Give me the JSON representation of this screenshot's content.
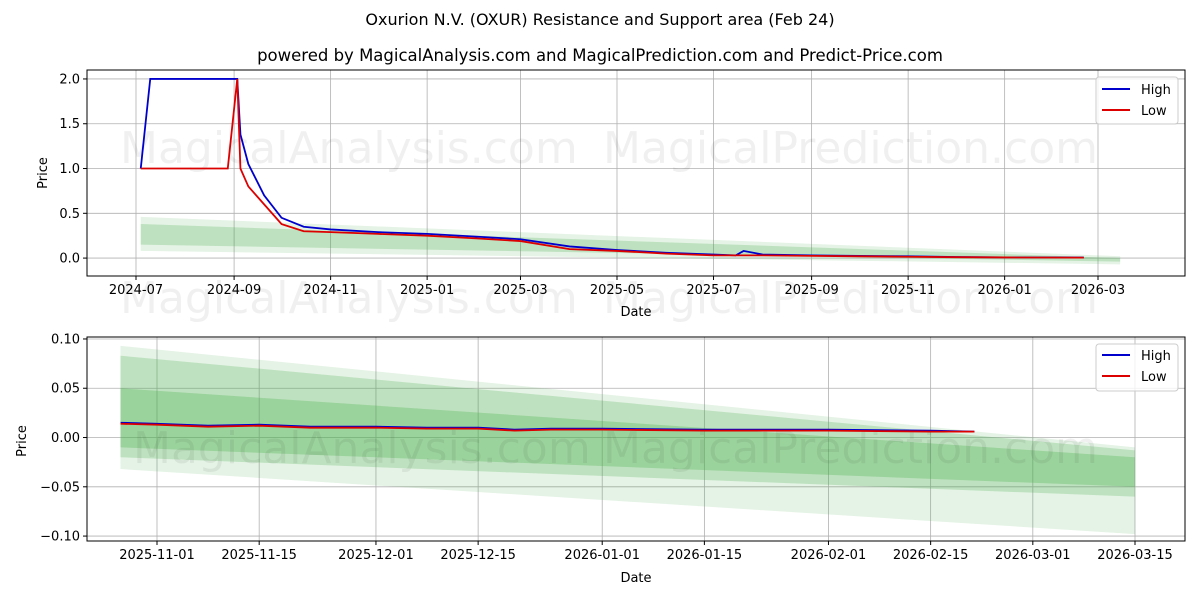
{
  "header": {
    "title": "Oxurion N.V. (OXUR) Resistance and Support area (Feb 24)",
    "subtitle": "powered by MagicalAnalysis.com and MagicalPrediction.com and Predict-Price.com"
  },
  "watermarks": [
    "MagicalAnalysis.com",
    "MagicalPrediction.com"
  ],
  "colors": {
    "high": "#0000cc",
    "low": "#dd0000",
    "band": "#4caf50"
  },
  "chart_data": [
    {
      "type": "line",
      "title": "",
      "xlabel": "Date",
      "ylabel": "Price",
      "x_ticks": [
        "2024-07",
        "2024-09",
        "2024-11",
        "2025-01",
        "2025-03",
        "2025-05",
        "2025-07",
        "2025-09",
        "2025-11",
        "2026-01",
        "2026-03"
      ],
      "y_ticks": [
        "0.0",
        "0.5",
        "1.0",
        "1.5",
        "2.0"
      ],
      "ylim": [
        -0.2,
        2.1
      ],
      "grid": true,
      "legend": {
        "position": "upper right",
        "entries": [
          "High",
          "Low"
        ]
      },
      "series": [
        {
          "name": "High",
          "color": "#0000cc",
          "x": [
            "2024-07-04",
            "2024-07-10",
            "2024-07-24",
            "2024-08-10",
            "2024-08-28",
            "2024-09-03",
            "2024-09-05",
            "2024-09-10",
            "2024-09-20",
            "2024-10-01",
            "2024-10-15",
            "2024-11-01",
            "2024-12-01",
            "2025-01-01",
            "2025-02-01",
            "2025-03-01",
            "2025-04-01",
            "2025-05-01",
            "2025-06-01",
            "2025-07-01",
            "2025-07-15",
            "2025-07-20",
            "2025-08-01",
            "2025-09-01",
            "2025-10-01",
            "2025-11-01",
            "2025-12-01",
            "2026-01-01",
            "2026-02-20"
          ],
          "values": [
            1.0,
            2.0,
            2.0,
            2.0,
            2.0,
            2.0,
            1.38,
            1.05,
            0.7,
            0.45,
            0.35,
            0.32,
            0.29,
            0.27,
            0.24,
            0.21,
            0.13,
            0.09,
            0.06,
            0.04,
            0.03,
            0.08,
            0.04,
            0.03,
            0.025,
            0.02,
            0.012,
            0.008,
            0.006
          ]
        },
        {
          "name": "Low",
          "color": "#dd0000",
          "x": [
            "2024-07-04",
            "2024-08-28",
            "2024-09-03",
            "2024-09-05",
            "2024-09-10",
            "2024-09-20",
            "2024-10-01",
            "2024-10-15",
            "2024-11-01",
            "2024-12-01",
            "2025-01-01",
            "2025-02-01",
            "2025-03-01",
            "2025-04-01",
            "2025-05-01",
            "2025-06-01",
            "2025-07-01",
            "2025-08-01",
            "2025-09-01",
            "2025-10-01",
            "2025-11-01",
            "2025-12-01",
            "2026-01-01",
            "2026-02-20"
          ],
          "values": [
            1.0,
            1.0,
            2.0,
            1.0,
            0.8,
            0.6,
            0.38,
            0.3,
            0.29,
            0.27,
            0.25,
            0.22,
            0.19,
            0.1,
            0.08,
            0.05,
            0.03,
            0.03,
            0.025,
            0.02,
            0.015,
            0.01,
            0.007,
            0.005
          ]
        }
      ],
      "bands": [
        {
          "name": "outer",
          "x": [
            "2024-07-04",
            "2026-03-15"
          ],
          "upper": [
            0.46,
            0.02
          ],
          "lower": [
            0.08,
            -0.07
          ]
        },
        {
          "name": "inner",
          "x": [
            "2024-07-04",
            "2026-03-15"
          ],
          "upper": [
            0.38,
            0.0
          ],
          "lower": [
            0.15,
            -0.04
          ]
        }
      ]
    },
    {
      "type": "line",
      "title": "",
      "xlabel": "Date",
      "ylabel": "Price",
      "x_ticks": [
        "2025-11-01",
        "2025-11-15",
        "2025-12-01",
        "2025-12-15",
        "2026-01-01",
        "2026-01-15",
        "2026-02-01",
        "2026-02-15",
        "2026-03-01",
        "2026-03-15"
      ],
      "y_ticks": [
        "−0.10",
        "−0.05",
        "0.00",
        "0.05",
        "0.10"
      ],
      "ylim": [
        -0.105,
        0.102
      ],
      "grid": true,
      "legend": {
        "position": "upper right",
        "entries": [
          "High",
          "Low"
        ]
      },
      "series": [
        {
          "name": "High",
          "color": "#0000cc",
          "x": [
            "2025-10-27",
            "2025-11-01",
            "2025-11-08",
            "2025-11-15",
            "2025-11-22",
            "2025-12-01",
            "2025-12-08",
            "2025-12-15",
            "2025-12-20",
            "2025-12-25",
            "2026-01-01",
            "2026-01-15",
            "2026-02-01",
            "2026-02-15",
            "2026-02-21"
          ],
          "values": [
            0.015,
            0.014,
            0.012,
            0.013,
            0.011,
            0.011,
            0.01,
            0.01,
            0.008,
            0.009,
            0.009,
            0.008,
            0.008,
            0.007,
            0.006
          ]
        },
        {
          "name": "Low",
          "color": "#dd0000",
          "x": [
            "2025-10-27",
            "2025-11-01",
            "2025-11-08",
            "2025-11-15",
            "2025-11-22",
            "2025-12-01",
            "2025-12-08",
            "2025-12-15",
            "2025-12-20",
            "2025-12-25",
            "2026-01-01",
            "2026-01-15",
            "2026-02-01",
            "2026-02-15",
            "2026-02-21"
          ],
          "values": [
            0.014,
            0.013,
            0.011,
            0.012,
            0.01,
            0.01,
            0.009,
            0.009,
            0.007,
            0.008,
            0.008,
            0.007,
            0.007,
            0.006,
            0.006
          ]
        }
      ],
      "bands": [
        {
          "name": "outer",
          "x": [
            "2025-10-27",
            "2026-03-15"
          ],
          "upper": [
            0.093,
            -0.01
          ],
          "lower": [
            -0.032,
            -0.098
          ]
        },
        {
          "name": "middle",
          "x": [
            "2025-10-27",
            "2026-03-15"
          ],
          "upper": [
            0.083,
            -0.013
          ],
          "lower": [
            -0.02,
            -0.06
          ]
        },
        {
          "name": "inner",
          "x": [
            "2025-10-27",
            "2026-03-15"
          ],
          "upper": [
            0.05,
            -0.02
          ],
          "lower": [
            -0.01,
            -0.05
          ]
        }
      ]
    }
  ]
}
